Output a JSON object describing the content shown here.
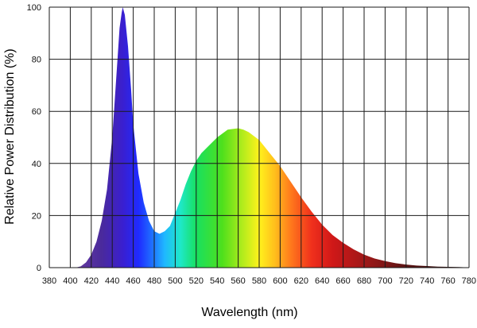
{
  "chart_data": {
    "type": "area",
    "title": "",
    "xlabel": "Wavelength (nm)",
    "ylabel": "Relative Power Distribution (%)",
    "xlim": [
      380,
      780
    ],
    "ylim": [
      0,
      100
    ],
    "grid": true,
    "x_ticks": [
      "380",
      "400",
      "420",
      "440",
      "460",
      "480",
      "500",
      "520",
      "540",
      "560",
      "580",
      "600",
      "620",
      "640",
      "660",
      "680",
      "700",
      "720",
      "740",
      "760",
      "780"
    ],
    "y_ticks": [
      "0",
      "20",
      "40",
      "60",
      "80",
      "100"
    ],
    "series": [
      {
        "x": [
          400,
          405,
          410,
          415,
          420,
          425,
          430,
          435,
          440,
          445,
          447,
          449,
          450,
          452,
          455,
          458,
          460,
          465,
          470,
          475,
          480,
          485,
          490,
          495,
          500,
          505,
          510,
          515,
          520,
          525,
          530,
          540,
          550,
          560,
          565,
          570,
          580,
          590,
          600,
          610,
          620,
          630,
          640,
          650,
          660,
          670,
          680,
          690,
          700,
          710,
          720,
          730,
          740,
          750,
          760,
          770,
          780
        ],
        "y": [
          0,
          0,
          0.5,
          2,
          5,
          10,
          18,
          30,
          50,
          80,
          92,
          98,
          100,
          97,
          85,
          68,
          55,
          36,
          25,
          18,
          14,
          13,
          14,
          16,
          21,
          26,
          32,
          37,
          41,
          44,
          46,
          50,
          53,
          53.5,
          53,
          52,
          49,
          44,
          39,
          33,
          27,
          21.5,
          16.5,
          12.5,
          9.5,
          7,
          5,
          3.5,
          2.5,
          1.7,
          1.2,
          0.8,
          0.6,
          0.4,
          0.3,
          0.2,
          0.1
        ]
      }
    ],
    "gradient_stops": [
      {
        "wl": 400,
        "color": "#6b3fa0"
      },
      {
        "wl": 430,
        "color": "#4a2a9c"
      },
      {
        "wl": 450,
        "color": "#3a1fd0"
      },
      {
        "wl": 465,
        "color": "#1f2bff"
      },
      {
        "wl": 480,
        "color": "#1f7bff"
      },
      {
        "wl": 490,
        "color": "#1fb8ff"
      },
      {
        "wl": 505,
        "color": "#1fe8c8"
      },
      {
        "wl": 520,
        "color": "#18e060"
      },
      {
        "wl": 545,
        "color": "#4fe01c"
      },
      {
        "wl": 565,
        "color": "#b6ec1c"
      },
      {
        "wl": 580,
        "color": "#fff21c"
      },
      {
        "wl": 595,
        "color": "#ffbe1c"
      },
      {
        "wl": 610,
        "color": "#ff7a1c"
      },
      {
        "wl": 630,
        "color": "#f0301c"
      },
      {
        "wl": 650,
        "color": "#d01818"
      },
      {
        "wl": 680,
        "color": "#a01818"
      },
      {
        "wl": 720,
        "color": "#5c1414"
      },
      {
        "wl": 780,
        "color": "#1a0a0a"
      }
    ]
  }
}
